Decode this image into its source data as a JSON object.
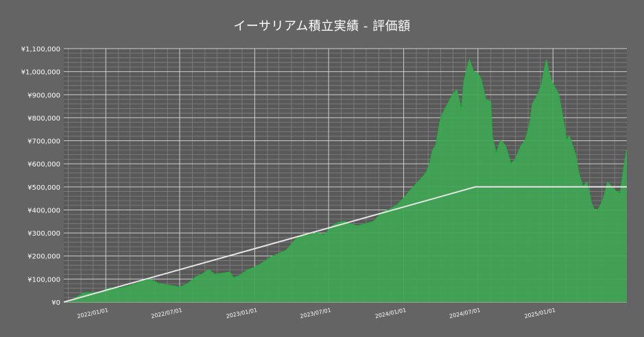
{
  "chart_data": {
    "type": "area",
    "title": "イーサリアム積立実績 - 評価額",
    "xlabel": "",
    "ylabel": "",
    "ylim": [
      0,
      1100000
    ],
    "xlim": [
      "2021-09-20",
      "2025-07-01"
    ],
    "grid": true,
    "colors": {
      "background": "#646464",
      "plot_background": "#595959",
      "area_fill": "#3fa653",
      "area_line": "#27b042",
      "invested_line": "#e6e6e6",
      "grid_major": "#cfcfcf",
      "grid_minor": "#828282"
    },
    "y_ticks": [
      {
        "value": 0,
        "label": "¥0"
      },
      {
        "value": 100000,
        "label": "¥100,000"
      },
      {
        "value": 200000,
        "label": "¥200,000"
      },
      {
        "value": 300000,
        "label": "¥300,000"
      },
      {
        "value": 400000,
        "label": "¥400,000"
      },
      {
        "value": 500000,
        "label": "¥500,000"
      },
      {
        "value": 600000,
        "label": "¥600,000"
      },
      {
        "value": 700000,
        "label": "¥700,000"
      },
      {
        "value": 800000,
        "label": "¥800,000"
      },
      {
        "value": 900000,
        "label": "¥900,000"
      },
      {
        "value": 1000000,
        "label": "¥1,000,000"
      },
      {
        "value": 1100000,
        "label": "¥1,100,000"
      }
    ],
    "x_ticks": [
      {
        "date": "2022-01-01",
        "label": "2022/01/01"
      },
      {
        "date": "2022-07-01",
        "label": "2022/07/01"
      },
      {
        "date": "2023-01-01",
        "label": "2023/01/01"
      },
      {
        "date": "2023-07-01",
        "label": "2023/07/01"
      },
      {
        "date": "2024-01-01",
        "label": "2024/01/01"
      },
      {
        "date": "2024-07-01",
        "label": "2024/07/01"
      },
      {
        "date": "2025-01-01",
        "label": "2025/01/01"
      }
    ],
    "series": [
      {
        "kind": "invested",
        "x": [
          "2021-09-20",
          "2024-06-25",
          "2025-07-01"
        ],
        "y": [
          0,
          500000,
          500000
        ]
      },
      {
        "kind": "value",
        "x": [
          "2021-09-20",
          "2021-10-15",
          "2021-11-10",
          "2021-12-01",
          "2021-12-20",
          "2022-01-10",
          "2022-02-01",
          "2022-03-01",
          "2022-04-01",
          "2022-04-20",
          "2022-05-10",
          "2022-05-25",
          "2022-06-15",
          "2022-07-01",
          "2022-07-20",
          "2022-08-10",
          "2022-08-25",
          "2022-09-10",
          "2022-09-25",
          "2022-10-15",
          "2022-11-01",
          "2022-11-10",
          "2022-11-25",
          "2022-12-15",
          "2023-01-01",
          "2023-01-20",
          "2023-02-10",
          "2023-03-01",
          "2023-03-20",
          "2023-04-10",
          "2023-04-25",
          "2023-05-15",
          "2023-06-01",
          "2023-06-20",
          "2023-07-10",
          "2023-07-25",
          "2023-08-10",
          "2023-08-20",
          "2023-09-10",
          "2023-10-01",
          "2023-10-20",
          "2023-11-10",
          "2023-11-25",
          "2023-12-15",
          "2024-01-01",
          "2024-01-15",
          "2024-01-25",
          "2024-02-10",
          "2024-02-25",
          "2024-03-05",
          "2024-03-12",
          "2024-03-20",
          "2024-04-01",
          "2024-04-15",
          "2024-04-30",
          "2024-05-10",
          "2024-05-22",
          "2024-05-28",
          "2024-06-10",
          "2024-06-20",
          "2024-07-01",
          "2024-07-08",
          "2024-07-20",
          "2024-08-01",
          "2024-08-05",
          "2024-08-15",
          "2024-08-25",
          "2024-09-06",
          "2024-09-20",
          "2024-10-01",
          "2024-10-15",
          "2024-10-25",
          "2024-11-06",
          "2024-11-12",
          "2024-11-25",
          "2024-12-05",
          "2024-12-10",
          "2024-12-16",
          "2024-12-20",
          "2024-12-28",
          "2025-01-06",
          "2025-01-15",
          "2025-01-25",
          "2025-02-03",
          "2025-02-10",
          "2025-02-25",
          "2025-03-05",
          "2025-03-15",
          "2025-03-25",
          "2025-04-05",
          "2025-04-15",
          "2025-04-25",
          "2025-05-05",
          "2025-05-15",
          "2025-05-25",
          "2025-06-05",
          "2025-06-15",
          "2025-06-25",
          "2025-07-01"
        ],
        "y": [
          0,
          14000,
          40000,
          40000,
          45000,
          62000,
          58000,
          70000,
          90000,
          98000,
          80000,
          75000,
          70000,
          64000,
          78000,
          110000,
          120000,
          140000,
          120000,
          125000,
          130000,
          105000,
          115000,
          140000,
          150000,
          170000,
          195000,
          210000,
          225000,
          270000,
          285000,
          290000,
          300000,
          290000,
          330000,
          345000,
          350000,
          340000,
          330000,
          340000,
          350000,
          390000,
          400000,
          420000,
          450000,
          480000,
          500000,
          530000,
          560000,
          600000,
          660000,
          680000,
          800000,
          850000,
          900000,
          920000,
          830000,
          960000,
          1050000,
          1000000,
          990000,
          970000,
          880000,
          870000,
          720000,
          640000,
          700000,
          680000,
          600000,
          620000,
          680000,
          700000,
          780000,
          860000,
          900000,
          950000,
          1000000,
          1050000,
          1010000,
          960000,
          930000,
          900000,
          800000,
          700000,
          720000,
          640000,
          560000,
          500000,
          520000,
          430000,
          390000,
          410000,
          450000,
          520000,
          500000,
          480000,
          470000,
          600000,
          660000
        ]
      }
    ]
  }
}
